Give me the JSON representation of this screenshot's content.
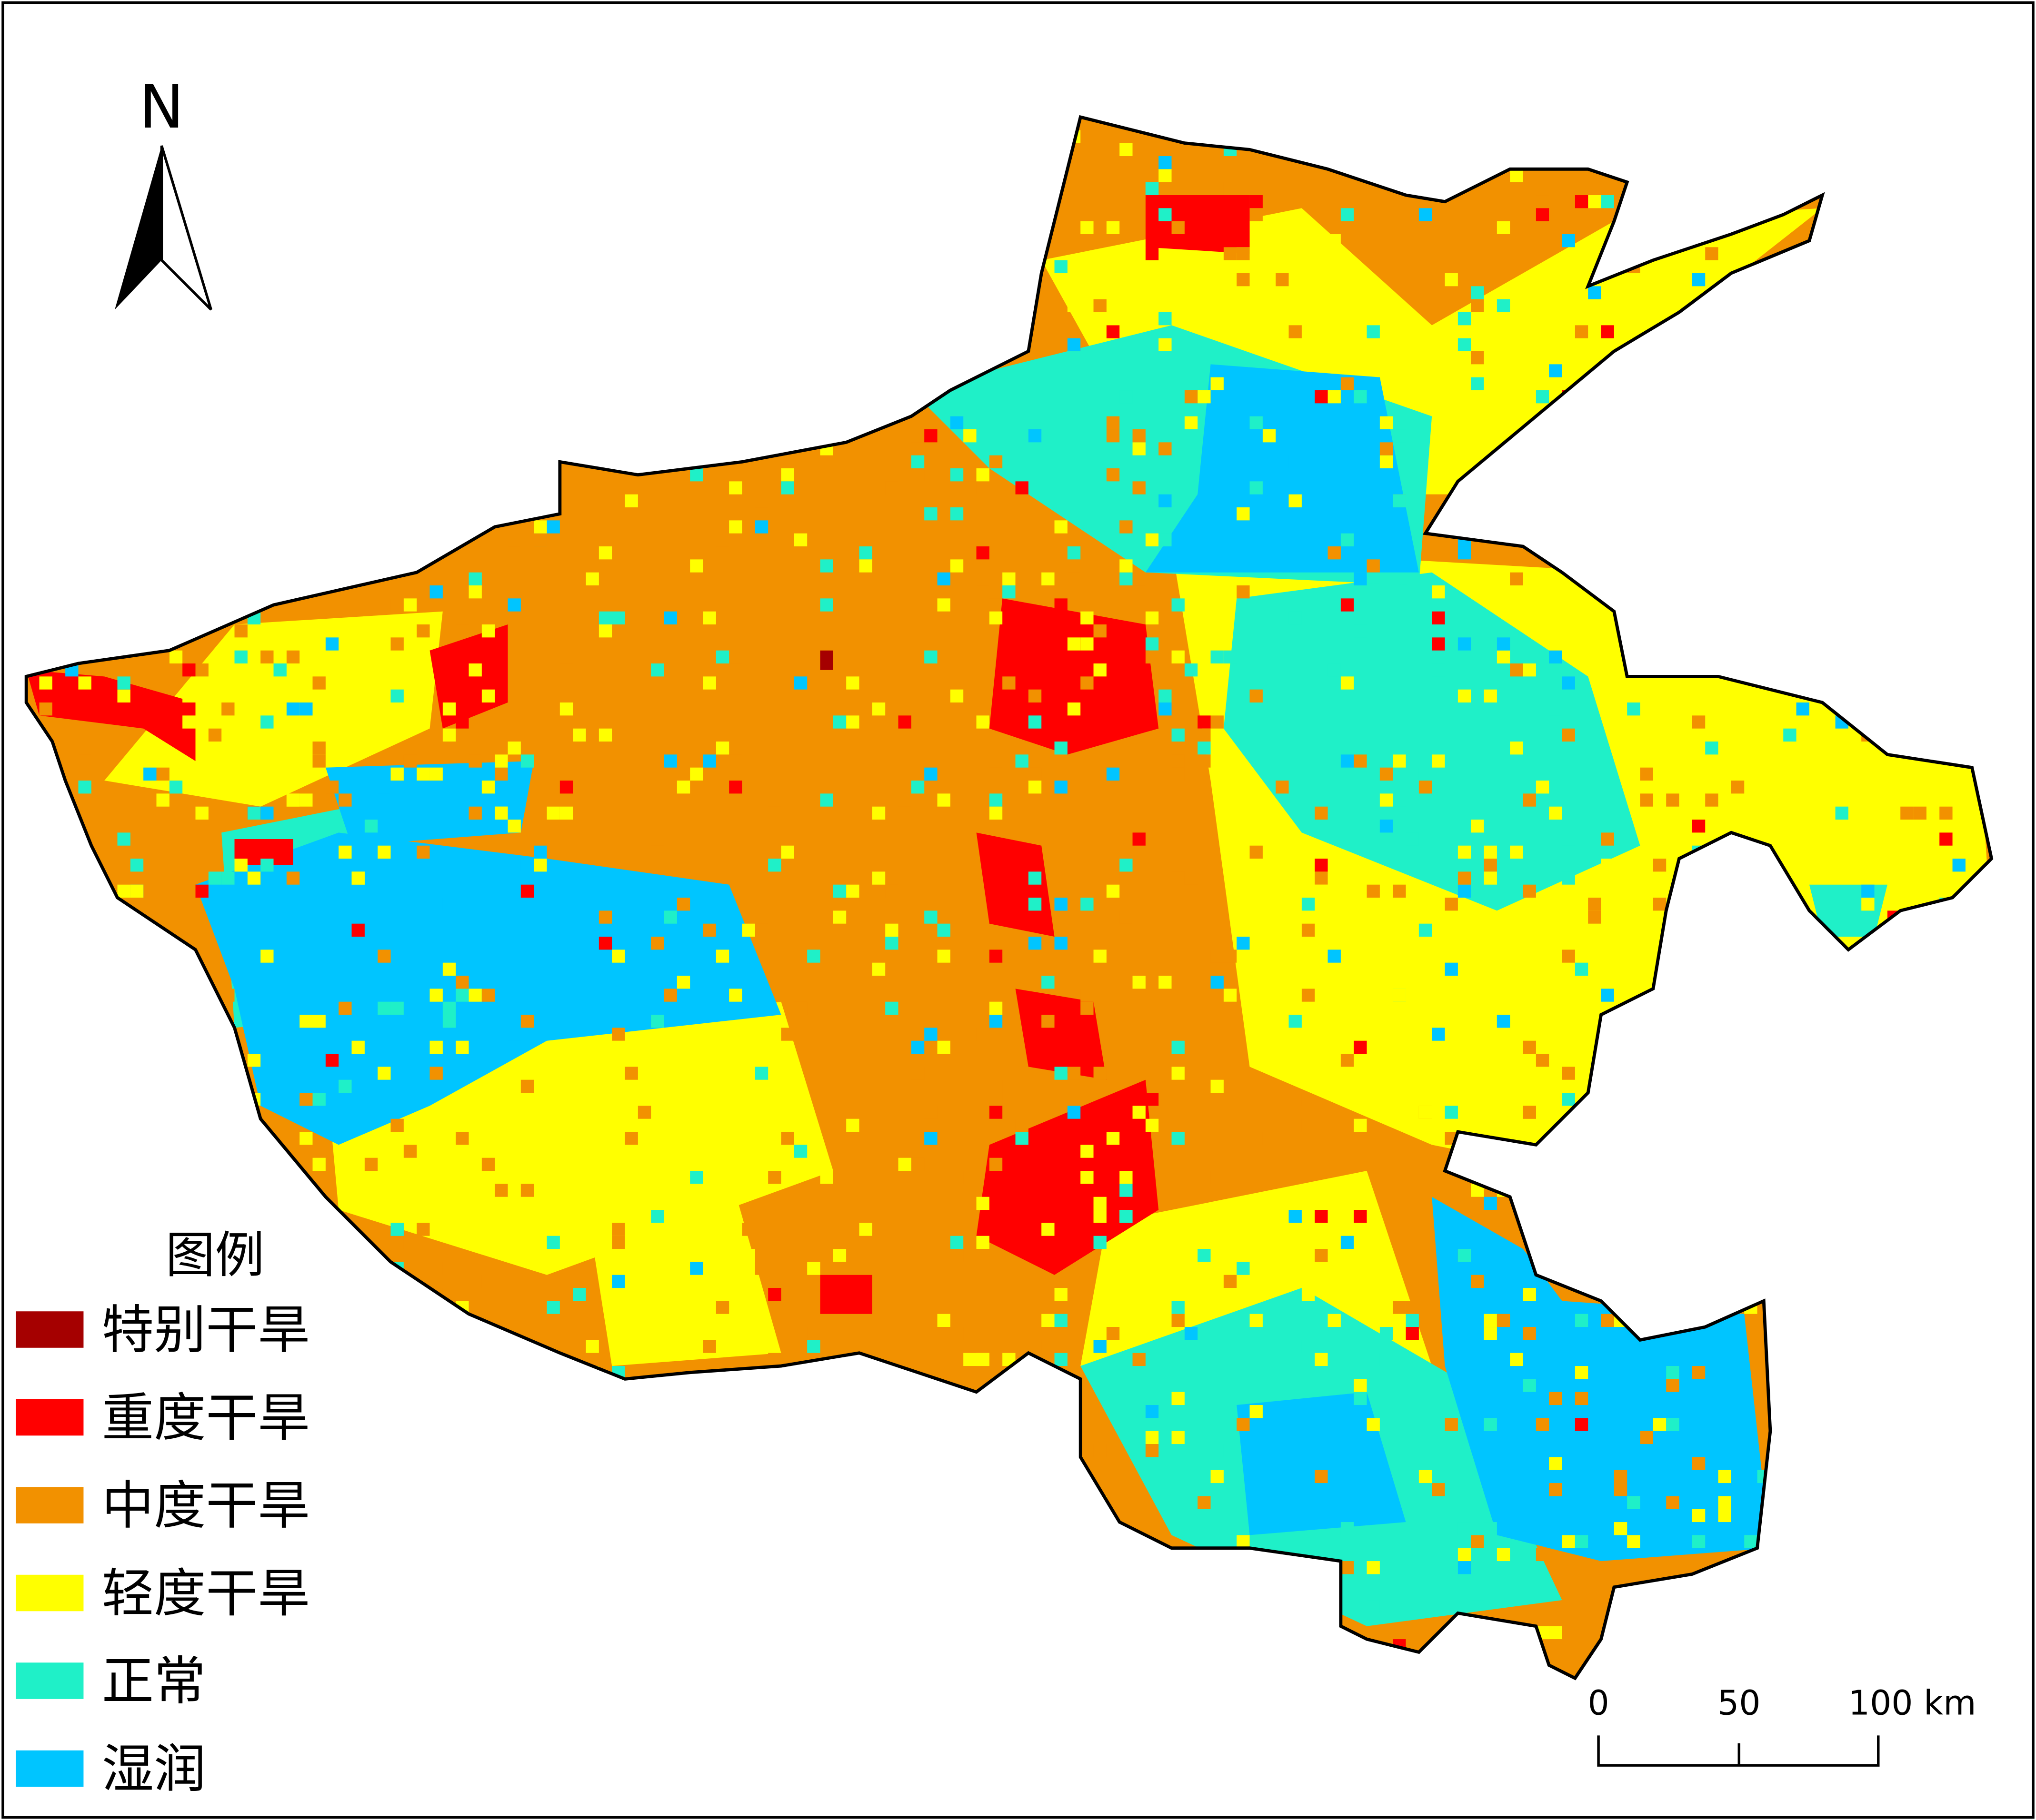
{
  "north_arrow": {
    "label": "N"
  },
  "legend": {
    "title": "图例",
    "items": [
      {
        "label": "特别干旱",
        "color": "#a50000"
      },
      {
        "label": "重度干旱",
        "color": "#ff0000"
      },
      {
        "label": "中度干旱",
        "color": "#f29100"
      },
      {
        "label": "轻度干旱",
        "color": "#ffff00"
      },
      {
        "label": "正常",
        "color": "#1ff0c8"
      },
      {
        "label": "湿润",
        "color": "#00c5ff"
      }
    ]
  },
  "scale_bar": {
    "labels": [
      "0",
      "50",
      "100 km"
    ]
  }
}
